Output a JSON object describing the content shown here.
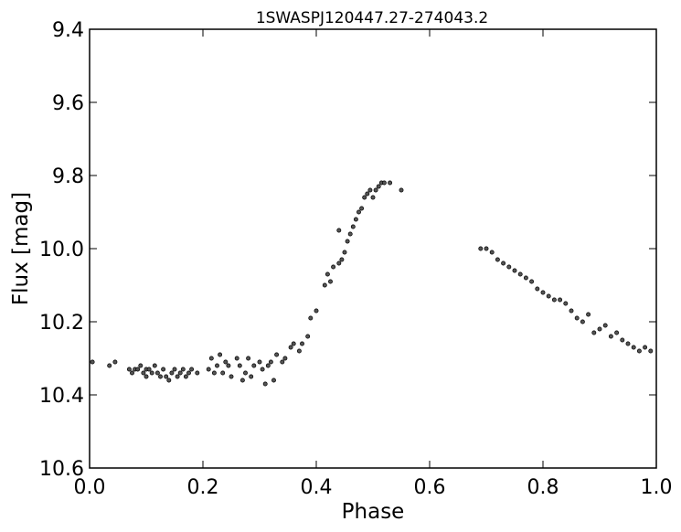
{
  "chart_data": {
    "type": "scatter",
    "title": "1SWASPJ120447.27-274043.2",
    "xlabel": "Phase",
    "ylabel": "Flux [mag]",
    "xlim": [
      0.0,
      1.0
    ],
    "ylim": [
      9.4,
      10.6
    ],
    "y_inverted": true,
    "grid": false,
    "legend": "none",
    "x_ticks": [
      0.0,
      0.2,
      0.4,
      0.6,
      0.8,
      1.0
    ],
    "x_tick_labels": [
      "0.0",
      "0.2",
      "0.4",
      "0.6",
      "0.8",
      "1.0"
    ],
    "y_ticks": [
      9.4,
      9.6,
      9.8,
      10.0,
      10.2,
      10.4,
      10.6
    ],
    "y_tick_labels": [
      "9.4",
      "9.6",
      "9.8",
      "10.0",
      "10.2",
      "10.4",
      "10.6"
    ],
    "marker_color": "#555555",
    "series": [
      {
        "x": [
          0.005,
          0.035,
          0.045,
          0.07,
          0.075,
          0.08,
          0.085,
          0.09,
          0.095,
          0.1,
          0.1,
          0.105,
          0.11,
          0.115,
          0.12,
          0.125,
          0.13,
          0.135,
          0.14,
          0.145,
          0.15,
          0.155,
          0.16,
          0.165,
          0.17,
          0.175,
          0.18,
          0.19,
          0.21,
          0.215,
          0.22,
          0.225,
          0.23,
          0.235,
          0.24,
          0.245,
          0.25,
          0.26,
          0.265,
          0.27,
          0.275,
          0.28,
          0.285,
          0.29,
          0.3,
          0.305,
          0.31,
          0.315,
          0.32,
          0.325,
          0.33,
          0.34,
          0.345,
          0.355,
          0.36,
          0.37,
          0.375,
          0.385,
          0.39,
          0.4,
          0.415,
          0.42,
          0.425,
          0.43,
          0.44,
          0.44,
          0.445,
          0.45,
          0.455,
          0.46,
          0.465,
          0.47,
          0.475,
          0.48,
          0.485,
          0.49,
          0.495,
          0.5,
          0.505,
          0.51,
          0.515,
          0.52,
          0.53,
          0.55,
          0.69,
          0.7,
          0.71,
          0.72,
          0.73,
          0.74,
          0.75,
          0.76,
          0.77,
          0.78,
          0.79,
          0.8,
          0.81,
          0.82,
          0.83,
          0.84,
          0.85,
          0.86,
          0.87,
          0.88,
          0.89,
          0.9,
          0.91,
          0.92,
          0.93,
          0.94,
          0.95,
          0.96,
          0.97,
          0.98,
          0.99
        ],
        "y": [
          10.31,
          10.32,
          10.31,
          10.33,
          10.34,
          10.33,
          10.33,
          10.32,
          10.34,
          10.33,
          10.35,
          10.33,
          10.34,
          10.32,
          10.34,
          10.35,
          10.33,
          10.35,
          10.36,
          10.34,
          10.33,
          10.35,
          10.34,
          10.33,
          10.35,
          10.34,
          10.33,
          10.34,
          10.33,
          10.3,
          10.34,
          10.32,
          10.29,
          10.34,
          10.31,
          10.32,
          10.35,
          10.3,
          10.32,
          10.36,
          10.34,
          10.3,
          10.35,
          10.32,
          10.31,
          10.33,
          10.37,
          10.32,
          10.31,
          10.36,
          10.29,
          10.31,
          10.3,
          10.27,
          10.26,
          10.28,
          10.26,
          10.24,
          10.19,
          10.17,
          10.1,
          10.07,
          10.09,
          10.05,
          9.95,
          10.04,
          10.03,
          10.01,
          9.98,
          9.96,
          9.94,
          9.92,
          9.9,
          9.89,
          9.86,
          9.85,
          9.84,
          9.86,
          9.84,
          9.83,
          9.82,
          9.82,
          9.82,
          9.84,
          10.0,
          10.0,
          10.01,
          10.03,
          10.04,
          10.05,
          10.06,
          10.07,
          10.08,
          10.09,
          10.11,
          10.12,
          10.13,
          10.14,
          10.14,
          10.15,
          10.17,
          10.19,
          10.2,
          10.18,
          10.23,
          10.22,
          10.21,
          10.24,
          10.23,
          10.25,
          10.26,
          10.27,
          10.28,
          10.27,
          10.28
        ]
      }
    ]
  }
}
